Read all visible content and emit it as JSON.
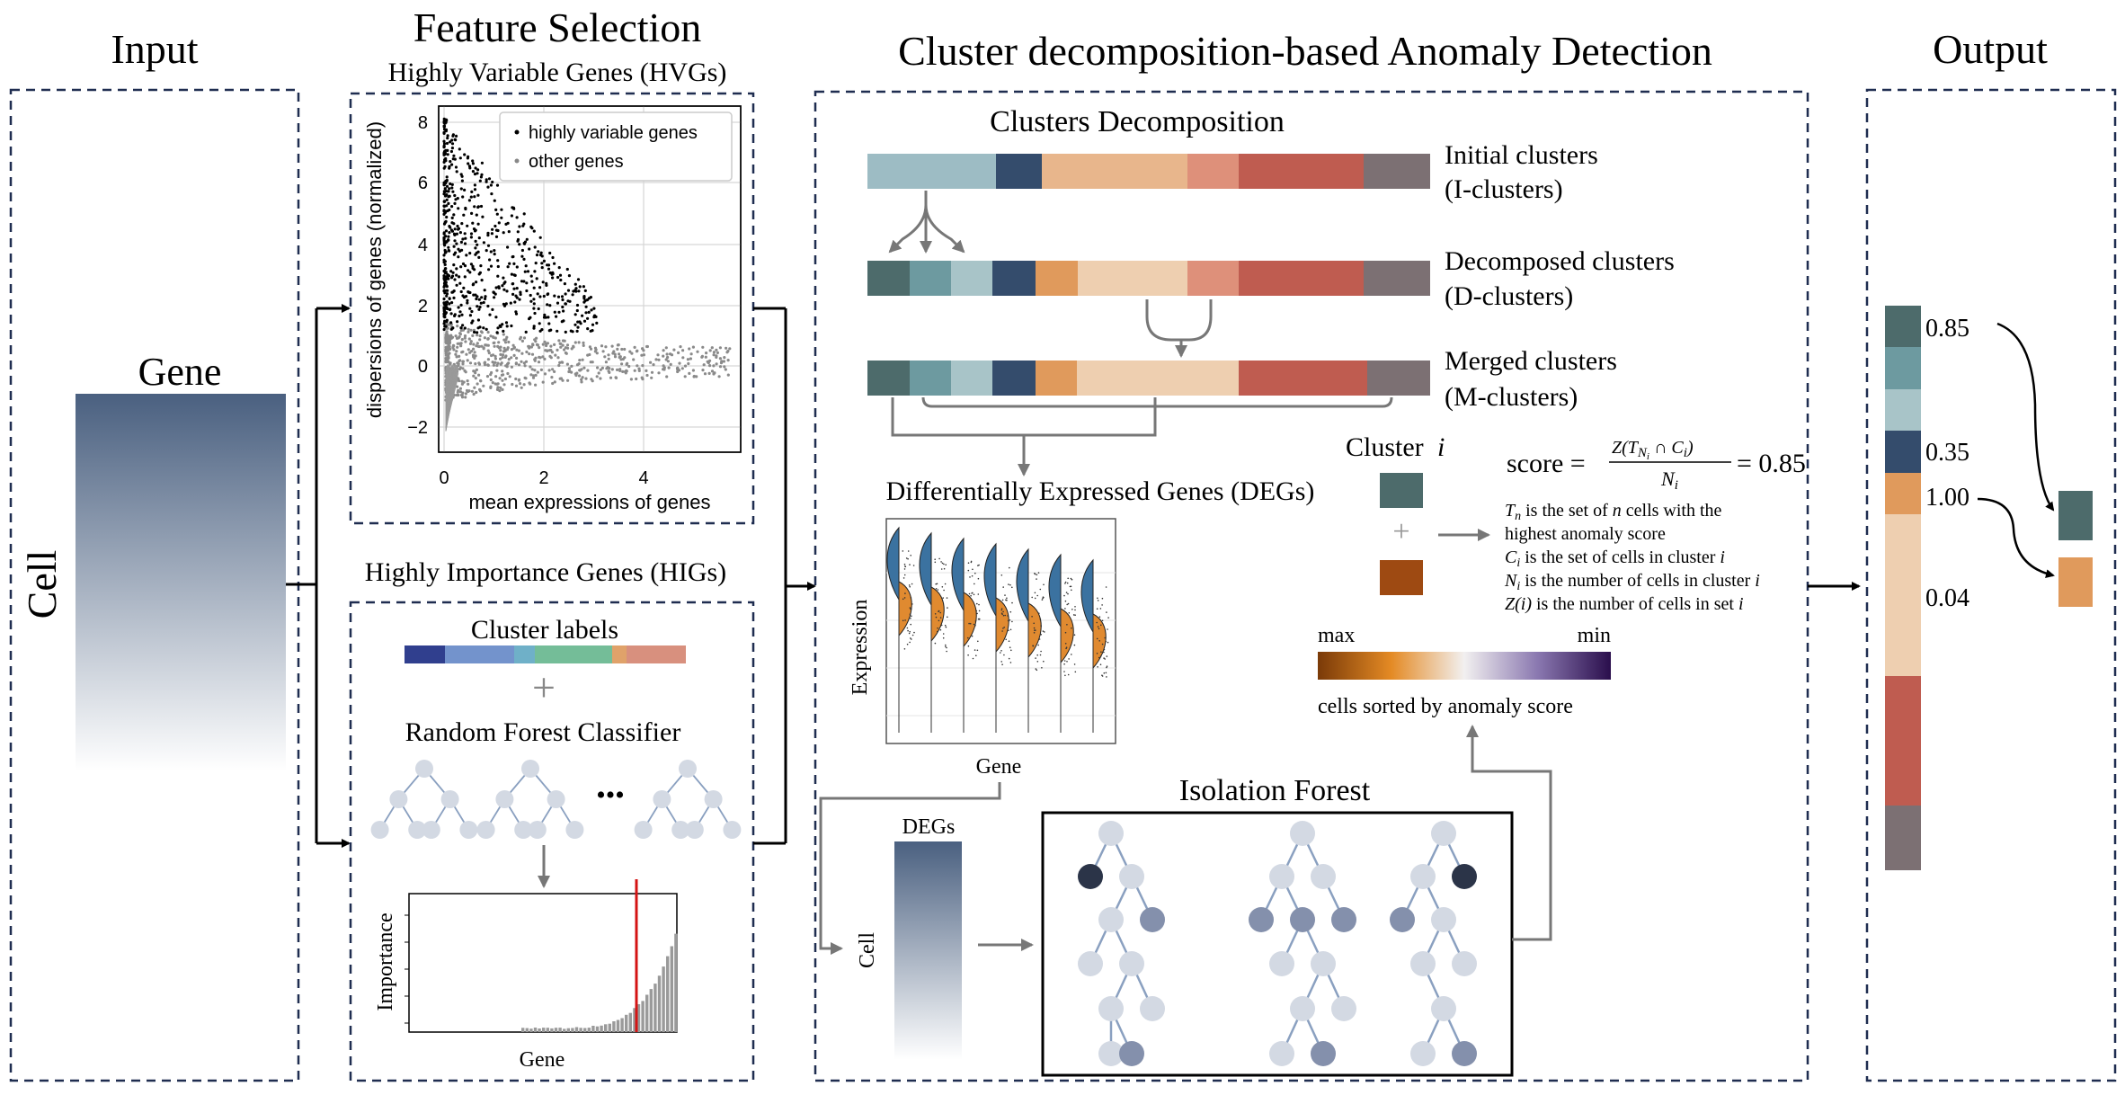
{
  "input": {
    "title": "Input",
    "matrix_label": "Gene",
    "axis_label": "Cell"
  },
  "feature_selection": {
    "title": "Feature Selection",
    "hvg": {
      "title": "Highly Variable Genes (HVGs)",
      "xlabel": "mean expressions of genes",
      "ylabel": "dispersions of genes (normalized)",
      "legend": [
        "highly variable genes",
        "other genes"
      ],
      "xticks": [
        "0",
        "2",
        "4"
      ],
      "yticks": [
        "8",
        "6",
        "4",
        "2",
        "0",
        "−2"
      ]
    },
    "hig": {
      "title": "Highly Importance Genes (HIGs)",
      "cluster_labels": "Cluster labels",
      "plus": "+",
      "classifier": "Random Forest Classifier",
      "ellipsis": "•••",
      "xlabel": "Gene",
      "ylabel": "Importance"
    }
  },
  "cada": {
    "title": "Cluster decomposition-based Anomaly Detection",
    "decomposition_title": "Clusters Decomposition",
    "rows": [
      {
        "line1": "Initial clusters",
        "line2": "(I-clusters)"
      },
      {
        "line1": "Decomposed clusters",
        "line2": "(D-clusters)"
      },
      {
        "line1": "Merged clusters",
        "line2": "(M-clusters)"
      }
    ],
    "degs": {
      "title": "Differentially Expressed Genes (DEGs)",
      "xlabel": "Gene",
      "ylabel": "Expression"
    },
    "cluster": {
      "label": "Cluster",
      "index": "i",
      "plus": "+"
    },
    "score": {
      "lhs": "score =",
      "numerator": "Z(T",
      "numerator_sub": "N",
      "numerator_subsub": "i",
      "numerator_rest": " ∩ C",
      "numerator_rest_sub": "i",
      "numerator_close": ")",
      "denominator": "N",
      "denominator_sub": "i",
      "value": "=  0.85"
    },
    "definitions": [
      {
        "sym": "T",
        "sub": "n",
        "text": " is the set of ",
        "var": "n",
        "text2": " cells with the"
      },
      {
        "text": "highest anomaly score"
      },
      {
        "sym": "C",
        "sub": "i",
        "text": " is the set of cells in cluster ",
        "var": "i"
      },
      {
        "sym": "N",
        "sub": "i",
        "text": " is the number of cells in cluster ",
        "var": "i"
      },
      {
        "sym": "Z(i)",
        "text": " is the number of cells in set ",
        "var": "i"
      }
    ],
    "scale": {
      "max": "max",
      "min": "min",
      "caption": "cells sorted by anomaly score"
    },
    "isolation_forest": {
      "title": "Isolation Forest"
    },
    "deg_matrix": {
      "col_label": "DEGs",
      "row_label": "Cell"
    }
  },
  "output": {
    "title": "Output",
    "values": [
      "0.85",
      "0.35",
      "1.00",
      "0.04"
    ]
  },
  "colors": {
    "dashed_border": "#1f2d50",
    "arrow_gray": "#777777",
    "c1": "#9dbcc4",
    "c1a": "#4d6b6b",
    "c1b": "#6d9aa0",
    "c1c": "#a8c4c8",
    "c2": "#344c6c",
    "c3": "#e8b68c",
    "c3a": "#e09a5c",
    "c3b": "#eecfb0",
    "c4": "#de907a",
    "c5": "#bf5c50",
    "c6": "#7c7073",
    "anomaly_teal": "#4d6b6b",
    "anomaly_brown": "#9e4a12",
    "anomaly_orange": "#e09a5c"
  }
}
